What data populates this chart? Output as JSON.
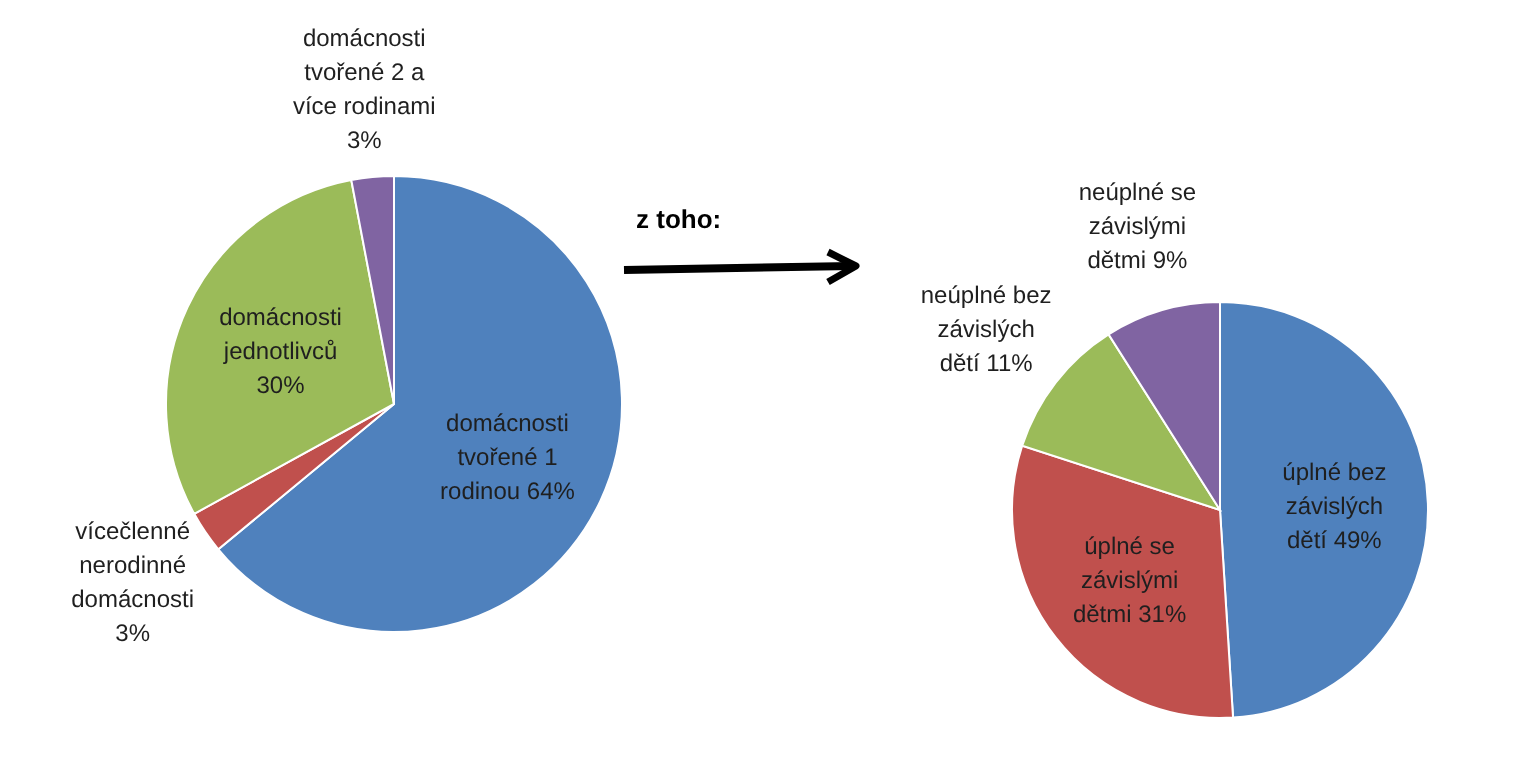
{
  "chart_data": [
    {
      "type": "pie",
      "categories": [
        "domácnosti tvořené 1 rodinou",
        "vícečlenné nerodinné domácnosti",
        "domácnosti jednotlivců",
        "domácnosti tvořené 2 a více rodinami"
      ],
      "values": [
        64,
        3,
        30,
        3
      ],
      "value_labels": [
        "64%",
        "3%",
        "30%",
        "3%"
      ],
      "colors": [
        "#4f81bd",
        "#c0504d",
        "#9bbb59",
        "#8064a2"
      ],
      "annotations": [
        "z toho:"
      ]
    },
    {
      "type": "pie",
      "categories": [
        "úplné bez závislých dětí",
        "úplné se závislými dětmi",
        "neúplné bez závislých dětí",
        "neúplné se závislými dětmi"
      ],
      "values": [
        49,
        31,
        11,
        9
      ],
      "value_labels": [
        "49%",
        "31%",
        "11%",
        "9%"
      ],
      "colors": [
        "#4f81bd",
        "#c0504d",
        "#9bbb59",
        "#8064a2"
      ]
    }
  ]
}
